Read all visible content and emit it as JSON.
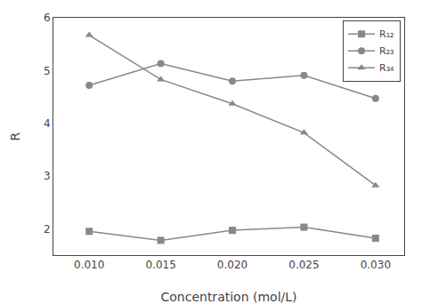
{
  "chart_data": {
    "type": "line",
    "xlabel": "Concentration (mol/L)",
    "ylabel": "R",
    "x": [
      0.01,
      0.015,
      0.02,
      0.025,
      0.03
    ],
    "series": [
      {
        "name": "R₁₂",
        "color": "#888888",
        "marker": "square",
        "values": [
          1.95,
          1.78,
          1.97,
          2.03,
          1.82
        ]
      },
      {
        "name": "R₂₃",
        "color": "#888888",
        "marker": "circle",
        "values": [
          4.72,
          5.13,
          4.8,
          4.91,
          4.47
        ]
      },
      {
        "name": "R₃₄",
        "color": "#888888",
        "marker": "triangle-up",
        "values": [
          5.67,
          4.83,
          4.37,
          3.82,
          2.82
        ]
      }
    ],
    "xlim": [
      0.0075,
      0.032
    ],
    "ylim": [
      1.5,
      6.0
    ],
    "xticks": [
      {
        "value": 0.01,
        "label": "0.010"
      },
      0.015,
      {
        "value": 0.02,
        "label": "0.020"
      },
      0.025,
      {
        "value": 0.03,
        "label": "0.030"
      }
    ],
    "yticks": [
      2,
      3,
      4,
      5,
      6
    ],
    "grid": false,
    "legend": "upper right"
  }
}
